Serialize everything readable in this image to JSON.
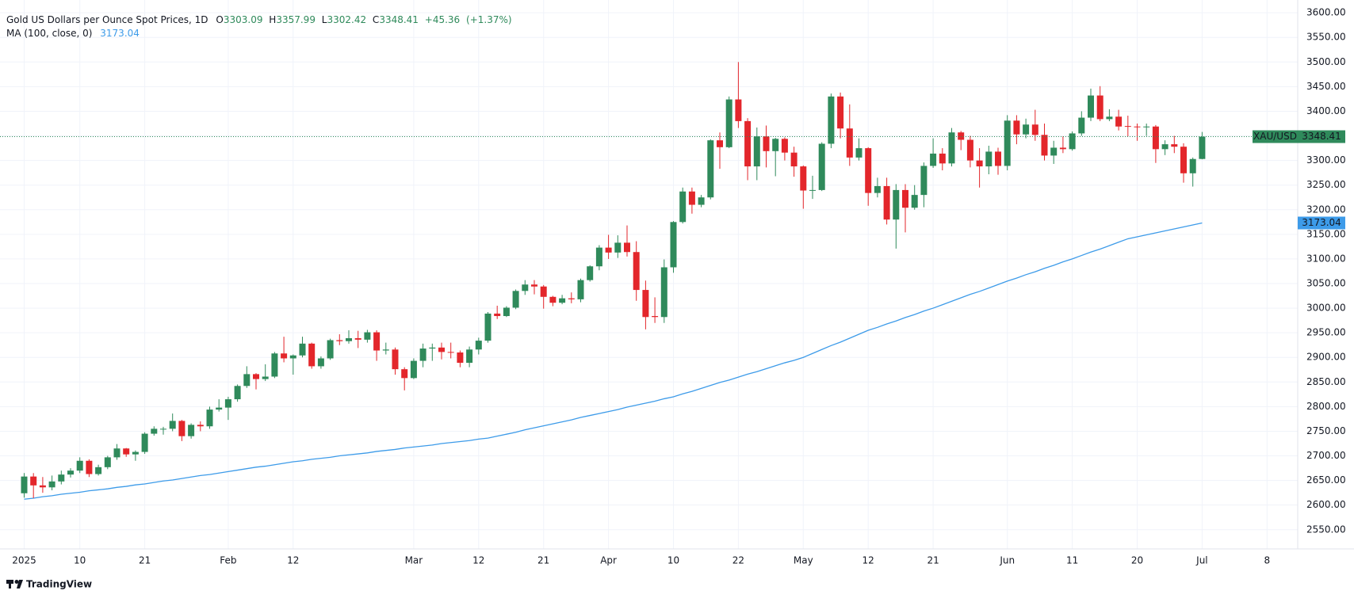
{
  "chart_data": {
    "type": "candlestick",
    "title": "Gold US Dollars per Ounce Spot Prices, 1D",
    "ohlc_labels": [
      "O",
      "H",
      "L",
      "C"
    ],
    "change_label": "+45.36",
    "change_pct_label": "(+1.37%)",
    "symbol": "XAU/USD",
    "brand": "TradingView",
    "up_color": "#2f8a5b",
    "down_color": "#e3262b",
    "grid": true,
    "categories": [
      "2025",
      null,
      null,
      null,
      null,
      null,
      "10",
      null,
      null,
      null,
      null,
      null,
      null,
      "21",
      null,
      null,
      null,
      null,
      null,
      null,
      null,
      null,
      "Feb",
      null,
      null,
      null,
      null,
      null,
      null,
      "12",
      null,
      null,
      null,
      null,
      null,
      null,
      null,
      null,
      null,
      null,
      null,
      null,
      "Mar",
      null,
      null,
      null,
      null,
      null,
      null,
      "12",
      null,
      null,
      null,
      null,
      null,
      null,
      "21",
      null,
      null,
      null,
      null,
      null,
      null,
      "Apr",
      null,
      null,
      null,
      null,
      null,
      null,
      "10",
      null,
      null,
      null,
      null,
      null,
      null,
      "22",
      null,
      null,
      null,
      null,
      null,
      null,
      "May",
      null,
      null,
      null,
      null,
      null,
      null,
      "12",
      null,
      null,
      null,
      null,
      null,
      null,
      "21",
      null,
      null,
      null,
      null,
      null,
      null,
      null,
      "Jun",
      null,
      null,
      null,
      null,
      null,
      null,
      "11",
      null,
      null,
      null,
      null,
      null,
      null,
      "20",
      null,
      null,
      null,
      null,
      null,
      null,
      "Jul",
      null,
      null,
      null,
      null,
      null,
      null,
      "8"
    ],
    "open": [
      2624,
      2658,
      2640,
      2636,
      2648,
      2662,
      2670,
      2690,
      2663,
      2677,
      2697,
      2715,
      2703,
      2708,
      2745,
      2755,
      2755,
      2771,
      2740,
      2763,
      2760,
      2794,
      2798,
      2815,
      2842,
      2866,
      2856,
      2861,
      2908,
      2898,
      2904,
      2928,
      2882,
      2898,
      2935,
      2933,
      2939,
      2936,
      2951,
      2914,
      2916,
      2876,
      2858,
      2893,
      2918,
      2920,
      2911,
      2910,
      2889,
      2916,
      2934,
      2989,
      2984,
      3001,
      3035,
      3048,
      3044,
      3023,
      3011,
      3020,
      3018,
      3057,
      3085,
      3123,
      3113,
      3133,
      3114,
      3037,
      2984,
      2982,
      3083,
      3175,
      3237,
      3210,
      3225,
      3341,
      3327,
      3424,
      3380,
      3288,
      3349,
      3319,
      3344,
      3316,
      3288,
      3239,
      3240,
      3334,
      3430,
      3365,
      3306,
      3325,
      3234,
      3248,
      3180,
      3240,
      3204,
      3230,
      3289,
      3314,
      3294,
      3357,
      3342,
      3300,
      3288,
      3318,
      3289,
      3381,
      3353,
      3373,
      3352,
      3310,
      3326,
      3323,
      3355,
      3387,
      3432,
      3384,
      3389,
      3370,
      3369,
      3368,
      3369,
      3323,
      3333,
      3328,
      3274,
      3303.09,
      null,
      null,
      null,
      null,
      null,
      null,
      null
    ],
    "high": [
      2665,
      2665,
      2657,
      2660,
      2670,
      2675,
      2697,
      2693,
      2682,
      2700,
      2724,
      2716,
      2711,
      2748,
      2760,
      2759,
      2786,
      2773,
      2766,
      2770,
      2800,
      2815,
      2820,
      2845,
      2882,
      2868,
      2886,
      2911,
      2942,
      2906,
      2942,
      2930,
      2902,
      2938,
      2947,
      2955,
      2954,
      2956,
      2955,
      2930,
      2920,
      2880,
      2898,
      2928,
      2928,
      2930,
      2930,
      2914,
      2922,
      2940,
      2992,
      3005,
      3004,
      3038,
      3057,
      3057,
      3047,
      3025,
      3027,
      3032,
      3060,
      3087,
      3128,
      3149,
      3148,
      3168,
      3136,
      3056,
      3022,
      3099,
      3177,
      3245,
      3245,
      3230,
      3343,
      3357,
      3430,
      3500,
      3386,
      3367,
      3371,
      3346,
      3347,
      3328,
      3290,
      3269,
      3337,
      3436,
      3438,
      3414,
      3345,
      3327,
      3265,
      3265,
      3252,
      3252,
      3250,
      3296,
      3345,
      3325,
      3366,
      3360,
      3350,
      3325,
      3330,
      3326,
      3392,
      3392,
      3385,
      3403,
      3375,
      3340,
      3349,
      3359,
      3400,
      3446,
      3451,
      3404,
      3403,
      3391,
      3375,
      3375,
      3372,
      3341,
      3350,
      3335,
      3306,
      3357.99,
      null,
      null,
      null,
      null,
      null,
      null,
      null
    ],
    "low": [
      2615,
      2614,
      2625,
      2630,
      2642,
      2656,
      2665,
      2657,
      2660,
      2673,
      2692,
      2698,
      2690,
      2704,
      2741,
      2743,
      2750,
      2730,
      2735,
      2750,
      2755,
      2790,
      2773,
      2810,
      2838,
      2835,
      2852,
      2858,
      2890,
      2865,
      2900,
      2877,
      2877,
      2895,
      2925,
      2928,
      2919,
      2930,
      2893,
      2906,
      2865,
      2833,
      2856,
      2880,
      2893,
      2896,
      2898,
      2880,
      2880,
      2906,
      2930,
      2978,
      2982,
      2998,
      3027,
      3028,
      2999,
      3004,
      3008,
      3010,
      3012,
      3054,
      3077,
      3100,
      3102,
      3105,
      3015,
      2957,
      2970,
      2970,
      3072,
      3172,
      3192,
      3205,
      3221,
      3283,
      3325,
      3366,
      3260,
      3260,
      3286,
      3268,
      3300,
      3267,
      3202,
      3222,
      3238,
      3325,
      3345,
      3289,
      3300,
      3208,
      3225,
      3170,
      3121,
      3154,
      3200,
      3205,
      3285,
      3280,
      3288,
      3321,
      3286,
      3245,
      3272,
      3271,
      3280,
      3333,
      3345,
      3340,
      3300,
      3293,
      3315,
      3320,
      3350,
      3380,
      3380,
      3380,
      3361,
      3349,
      3340,
      3350,
      3295,
      3311,
      3315,
      3255,
      3247,
      3302.42,
      null,
      null,
      null,
      null,
      null,
      null,
      null
    ],
    "close": [
      2658,
      2640,
      2636,
      2648,
      2662,
      2670,
      2690,
      2663,
      2677,
      2697,
      2715,
      2703,
      2708,
      2745,
      2755,
      2755,
      2771,
      2740,
      2763,
      2760,
      2794,
      2798,
      2815,
      2842,
      2866,
      2856,
      2861,
      2908,
      2898,
      2904,
      2928,
      2882,
      2898,
      2935,
      2933,
      2939,
      2936,
      2951,
      2914,
      2916,
      2876,
      2858,
      2893,
      2918,
      2920,
      2911,
      2910,
      2889,
      2916,
      2934,
      2989,
      2984,
      3001,
      3035,
      3048,
      3044,
      3023,
      3011,
      3020,
      3018,
      3057,
      3085,
      3123,
      3113,
      3133,
      3114,
      3037,
      2982,
      2982,
      3083,
      3175,
      3237,
      3210,
      3225,
      3341,
      3327,
      3424,
      3380,
      3288,
      3349,
      3319,
      3344,
      3316,
      3288,
      3239,
      3240,
      3334,
      3430,
      3365,
      3306,
      3325,
      3234,
      3248,
      3180,
      3240,
      3204,
      3230,
      3289,
      3314,
      3294,
      3357,
      3342,
      3300,
      3288,
      3318,
      3289,
      3381,
      3353,
      3373,
      3352,
      3310,
      3326,
      3323,
      3355,
      3387,
      3432,
      3384,
      3389,
      3369,
      3369,
      3368,
      3369,
      3323,
      3333,
      3328,
      3274,
      3303,
      3348.41,
      null,
      null,
      null,
      null,
      null,
      null,
      null
    ],
    "ma": {
      "name": "MA (100, close, 0)",
      "color": "#3d9be9",
      "values": [
        2612,
        2614,
        2617,
        2619,
        2622,
        2624,
        2626,
        2629,
        2631,
        2633,
        2636,
        2638,
        2641,
        2643,
        2646,
        2649,
        2651,
        2654,
        2657,
        2660,
        2662,
        2665,
        2668,
        2671,
        2674,
        2677,
        2679,
        2682,
        2685,
        2688,
        2690,
        2693,
        2695,
        2697,
        2700,
        2702,
        2704,
        2706,
        2709,
        2711,
        2713,
        2716,
        2718,
        2720,
        2722,
        2725,
        2727,
        2729,
        2731,
        2734,
        2736,
        2740,
        2744,
        2748,
        2753,
        2757,
        2761,
        2765,
        2769,
        2773,
        2778,
        2782,
        2786,
        2790,
        2794,
        2799,
        2803,
        2807,
        2811,
        2816,
        2820,
        2826,
        2831,
        2837,
        2843,
        2849,
        2854,
        2860,
        2866,
        2871,
        2877,
        2883,
        2889,
        2894,
        2900,
        2908,
        2916,
        2924,
        2931,
        2939,
        2947,
        2955,
        2961,
        2968,
        2974,
        2981,
        2987,
        2994,
        3000,
        3007,
        3014,
        3021,
        3028,
        3034,
        3041,
        3048,
        3055,
        3061,
        3068,
        3074,
        3081,
        3087,
        3094,
        3100,
        3107,
        3114,
        3120,
        3127,
        3134,
        3141,
        3145,
        3149,
        3153,
        3157,
        3161,
        3165,
        3169,
        3173.04,
        null,
        null,
        null,
        null,
        null,
        null,
        null
      ]
    },
    "ylim": [
      2511,
      3626
    ],
    "yticks": [
      {
        "value": 2550,
        "label": "2550.00"
      },
      {
        "value": 2600,
        "label": "2600.00"
      },
      {
        "value": 2650,
        "label": "2650.00"
      },
      {
        "value": 2700,
        "label": "2700.00"
      },
      {
        "value": 2750,
        "label": "2750.00"
      },
      {
        "value": 2800,
        "label": "2800.00"
      },
      {
        "value": 2850,
        "label": "2850.00"
      },
      {
        "value": 2900,
        "label": "2900.00"
      },
      {
        "value": 2950,
        "label": "2950.00"
      },
      {
        "value": 3000,
        "label": "3000.00"
      },
      {
        "value": 3050,
        "label": "3050.00"
      },
      {
        "value": 3100,
        "label": "3100.00"
      },
      {
        "value": 3150,
        "label": "3150.00"
      },
      {
        "value": 3200,
        "label": "3200.00"
      },
      {
        "value": 3250,
        "label": "3250.00"
      },
      {
        "value": 3300,
        "label": "3300.00"
      },
      {
        "value": 3350,
        "label": "3350.00"
      },
      {
        "value": 3400,
        "label": "3400.00"
      },
      {
        "value": 3450,
        "label": "3450.00"
      },
      {
        "value": 3500,
        "label": "3500.00"
      },
      {
        "value": 3550,
        "label": "3550.00"
      },
      {
        "value": 3600,
        "label": "3600.00"
      }
    ]
  }
}
